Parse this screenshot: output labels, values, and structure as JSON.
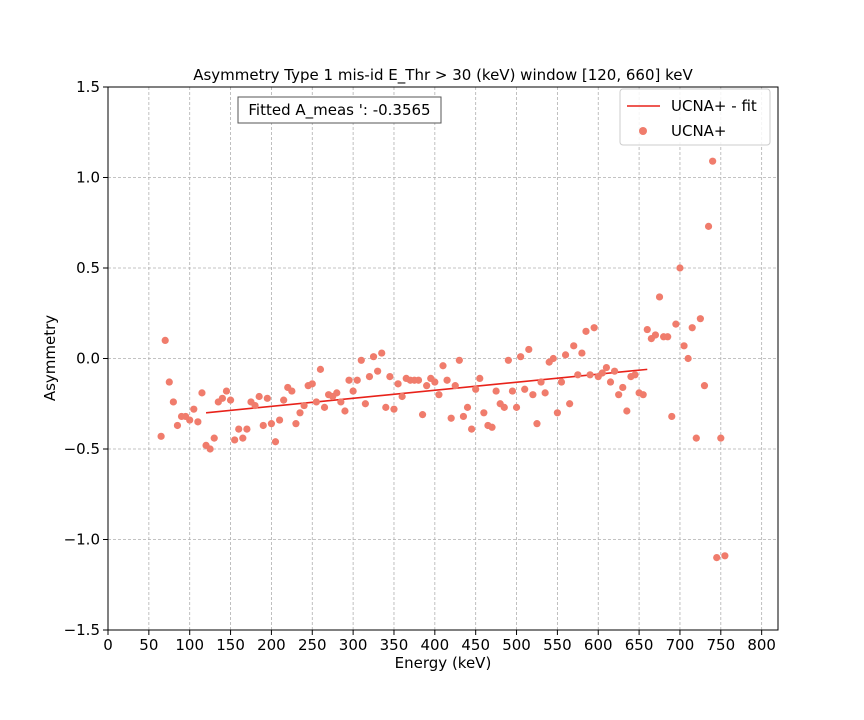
{
  "chart_data": {
    "type": "scatter",
    "title": "Asymmetry Type 1 mis-id  E_Thr > 30 (keV) window [120, 660] keV",
    "xlabel": "Energy (keV)",
    "ylabel": "Asymmetry",
    "xlim": [
      0,
      820
    ],
    "ylim": [
      -1.5,
      1.5
    ],
    "xticks": [
      0,
      50,
      100,
      150,
      200,
      250,
      300,
      350,
      400,
      450,
      500,
      550,
      600,
      650,
      700,
      750,
      800
    ],
    "yticks": [
      -1.5,
      -1.0,
      -0.5,
      0.0,
      0.5,
      1.0,
      1.5
    ],
    "xtick_labels": [
      "0",
      "50",
      "100",
      "150",
      "200",
      "250",
      "300",
      "350",
      "400",
      "450",
      "500",
      "550",
      "600",
      "650",
      "700",
      "750",
      "800"
    ],
    "ytick_labels": [
      "−1.5",
      "−1.0",
      "−0.5",
      "0.0",
      "0.5",
      "1.0",
      "1.5"
    ],
    "grid": true,
    "legend_position": "top-right",
    "annotation": "Fitted A_meas ': -0.3565",
    "colors": {
      "scatter": "#f07c6c",
      "fit": "#e8221a"
    },
    "fit": {
      "name": "UCNA+ - fit",
      "x": [
        120,
        660
      ],
      "y": [
        -0.3,
        -0.06
      ]
    },
    "series": [
      {
        "name": "UCNA+",
        "x": [
          65,
          70,
          75,
          80,
          85,
          90,
          95,
          100,
          105,
          110,
          115,
          120,
          125,
          130,
          135,
          140,
          145,
          150,
          155,
          160,
          165,
          170,
          175,
          180,
          185,
          190,
          195,
          200,
          205,
          210,
          215,
          220,
          225,
          230,
          235,
          240,
          245,
          250,
          255,
          260,
          265,
          270,
          275,
          280,
          285,
          290,
          295,
          300,
          305,
          310,
          315,
          320,
          325,
          330,
          335,
          340,
          345,
          350,
          355,
          360,
          365,
          370,
          375,
          380,
          385,
          390,
          395,
          400,
          405,
          410,
          415,
          420,
          425,
          430,
          435,
          440,
          445,
          450,
          455,
          460,
          465,
          470,
          475,
          480,
          485,
          490,
          495,
          500,
          505,
          510,
          515,
          520,
          525,
          530,
          535,
          540,
          545,
          550,
          555,
          560,
          565,
          570,
          575,
          580,
          585,
          590,
          595,
          600,
          605,
          610,
          615,
          620,
          625,
          630,
          635,
          640,
          645,
          650,
          655,
          660,
          665,
          670,
          675,
          680,
          685,
          690,
          695,
          700,
          705,
          710,
          715,
          720,
          725,
          730,
          735,
          740,
          745,
          750,
          755
        ],
        "y": [
          -0.43,
          0.1,
          -0.13,
          -0.24,
          -0.37,
          -0.32,
          -0.32,
          -0.34,
          -0.28,
          -0.35,
          -0.19,
          -0.48,
          -0.5,
          -0.44,
          -0.24,
          -0.22,
          -0.18,
          -0.23,
          -0.45,
          -0.39,
          -0.44,
          -0.39,
          -0.24,
          -0.26,
          -0.21,
          -0.37,
          -0.22,
          -0.36,
          -0.46,
          -0.34,
          -0.23,
          -0.16,
          -0.18,
          -0.36,
          -0.3,
          -0.26,
          -0.15,
          -0.14,
          -0.24,
          -0.06,
          -0.27,
          -0.2,
          -0.21,
          -0.19,
          -0.24,
          -0.29,
          -0.12,
          -0.18,
          -0.12,
          -0.01,
          -0.25,
          -0.1,
          0.01,
          -0.07,
          0.03,
          -0.27,
          -0.1,
          -0.28,
          -0.14,
          -0.21,
          -0.11,
          -0.12,
          -0.12,
          -0.12,
          -0.31,
          -0.15,
          -0.11,
          -0.13,
          -0.2,
          -0.04,
          -0.12,
          -0.33,
          -0.15,
          -0.01,
          -0.32,
          -0.27,
          -0.39,
          -0.17,
          -0.11,
          -0.3,
          -0.37,
          -0.38,
          -0.18,
          -0.25,
          -0.27,
          -0.01,
          -0.18,
          -0.27,
          0.01,
          -0.17,
          0.05,
          -0.2,
          -0.36,
          -0.13,
          -0.19,
          -0.02,
          0.0,
          -0.3,
          -0.13,
          0.02,
          -0.25,
          0.07,
          -0.09,
          0.03,
          0.15,
          -0.09,
          0.17,
          -0.1,
          -0.08,
          -0.05,
          -0.13,
          -0.07,
          -0.2,
          -0.16,
          -0.29,
          -0.1,
          -0.09,
          -0.19,
          -0.2,
          0.16,
          0.11,
          0.13,
          0.34,
          0.12,
          0.12,
          -0.32,
          0.19,
          0.5,
          0.07,
          0.0,
          0.17,
          -0.44,
          0.22,
          -0.15,
          0.73,
          1.09,
          -1.1,
          -0.44,
          -1.09
        ]
      }
    ]
  }
}
